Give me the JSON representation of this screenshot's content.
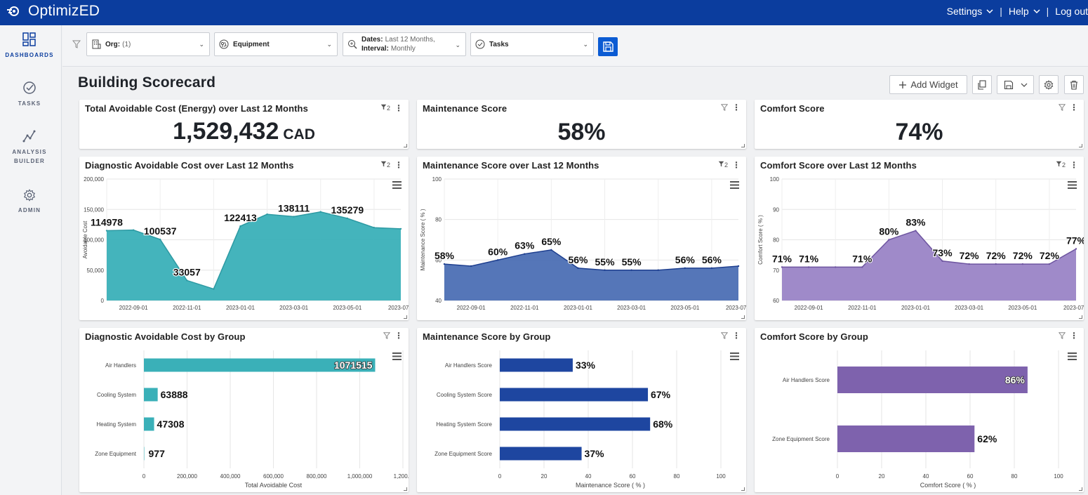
{
  "brand": {
    "name": "OptimizED"
  },
  "topnav": {
    "settings": "Settings",
    "help": "Help",
    "logout": "Log out",
    "separator": "|"
  },
  "sidebar": {
    "items": [
      {
        "label": "DASHBOARDS",
        "line2": ""
      },
      {
        "label": "TASKS",
        "line2": ""
      },
      {
        "label": "ANALYSIS",
        "line2": "BUILDER"
      },
      {
        "label": "ADMIN",
        "line2": ""
      }
    ]
  },
  "filters": {
    "org": {
      "label": "Org:",
      "value": "(1)"
    },
    "equipment": {
      "label": "Equipment"
    },
    "dates": {
      "label": "Dates:",
      "value": "Last 12 Months,",
      "interval_label": "Interval:",
      "interval_value": "Monthly"
    },
    "tasks": {
      "label": "Tasks"
    }
  },
  "page": {
    "title": "Building Scorecard"
  },
  "toolbar": {
    "add_widget": "Add Widget"
  },
  "colors": {
    "brand": "#0b3d9e",
    "teal": "#3ab0b8",
    "navy": "#1e46a0",
    "purple": "#7e62ad"
  },
  "widgets": {
    "kpi_cost": {
      "title": "Total Avoidable Cost (Energy) over Last 12 Months",
      "value": "1,529,432",
      "unit": "CAD",
      "filter_count": "2"
    },
    "kpi_maint": {
      "title": "Maintenance Score",
      "value": "58%"
    },
    "kpi_comfort": {
      "title": "Comfort Score",
      "value": "74%"
    },
    "line_cost": {
      "title": "Diagnostic Avoidable Cost over Last 12 Months",
      "filter_count": "2"
    },
    "line_maint": {
      "title": "Maintenance Score over Last 12 Months",
      "filter_count": "2"
    },
    "line_comfort": {
      "title": "Comfort Score over Last 12 Months",
      "filter_count": "2"
    },
    "bar_cost": {
      "title": "Diagnostic Avoidable Cost by Group"
    },
    "bar_maint": {
      "title": "Maintenance Score by Group"
    },
    "bar_comfort": {
      "title": "Comfort Score by Group"
    }
  },
  "chart_data": [
    {
      "id": "line_cost",
      "type": "area",
      "title": "Diagnostic Avoidable Cost over Last 12 Months",
      "ylabel": "Avoidable Cost",
      "ylim": [
        0,
        200000
      ],
      "yticks": [
        "0",
        "50,000",
        "100,000",
        "150,000",
        "200,000"
      ],
      "xticks": [
        "2022-09-01",
        "2022-11-01",
        "2023-01-01",
        "2023-03-01",
        "2023-05-01",
        "2023-07..."
      ],
      "x": [
        "2022-08",
        "2022-09",
        "2022-10",
        "2022-11",
        "2022-12",
        "2023-01",
        "2023-02",
        "2023-03",
        "2023-04",
        "2023-05",
        "2023-06",
        "2023-07"
      ],
      "values": [
        114978,
        116000,
        100537,
        33057,
        19000,
        122413,
        142000,
        138111,
        146000,
        135279,
        120000,
        118000
      ],
      "labels": [
        "114978",
        "",
        "100537",
        "33057",
        "",
        "122413",
        "",
        "138111",
        "",
        "135279",
        "",
        ""
      ],
      "color": "#3ab0b8",
      "stroke": "#2d9aa3"
    },
    {
      "id": "line_maint",
      "type": "area",
      "title": "Maintenance Score over Last 12 Months",
      "ylabel": "Maintenance Score ( % )",
      "ylim": [
        40,
        100
      ],
      "yticks": [
        "40",
        "60",
        "80",
        "100"
      ],
      "xticks": [
        "2022-09-01",
        "2022-11-01",
        "2023-01-01",
        "2023-03-01",
        "2023-05-01",
        "2023-07..."
      ],
      "x": [
        "2022-08",
        "2022-09",
        "2022-10",
        "2022-11",
        "2022-12",
        "2023-01",
        "2023-02",
        "2023-03",
        "2023-04",
        "2023-05",
        "2023-06",
        "2023-07"
      ],
      "values": [
        58,
        57,
        60,
        63,
        65,
        56,
        55,
        55,
        55,
        56,
        56,
        57
      ],
      "labels": [
        "58%",
        "",
        "60%",
        "63%",
        "65%",
        "56%",
        "55%",
        "55%",
        "",
        "56%",
        "56%",
        ""
      ],
      "color": "#4c6fb4",
      "stroke": "#1e3f8f"
    },
    {
      "id": "line_comfort",
      "type": "area",
      "title": "Comfort Score over Last 12 Months",
      "ylabel": "Comfort Score ( % )",
      "ylim": [
        60,
        100
      ],
      "yticks": [
        "60",
        "70",
        "80",
        "90",
        "100"
      ],
      "xticks": [
        "2022-09-01",
        "2022-11-01",
        "2023-01-01",
        "2023-03-01",
        "2023-05-01",
        "2023-07..."
      ],
      "x": [
        "2022-08",
        "2022-09",
        "2022-10",
        "2022-11",
        "2022-12",
        "2023-01",
        "2023-02",
        "2023-03",
        "2023-04",
        "2023-05",
        "2023-06",
        "2023-07"
      ],
      "values": [
        71,
        71,
        71,
        71,
        80,
        83,
        73,
        72,
        72,
        72,
        72,
        77
      ],
      "labels": [
        "71%",
        "71%",
        "",
        "71%",
        "80%",
        "83%",
        "73%",
        "72%",
        "72%",
        "72%",
        "72%",
        "77%"
      ],
      "color": "#9a84c6",
      "stroke": "#6e55a0"
    },
    {
      "id": "bar_cost",
      "type": "bar",
      "orientation": "horizontal",
      "title": "Diagnostic Avoidable Cost by Group",
      "xlabel": "Total Avoidable Cost",
      "xlim": [
        0,
        1200000
      ],
      "xticks": [
        "0",
        "200,000",
        "400,000",
        "600,000",
        "800,000",
        "1,000,000",
        "1,200..."
      ],
      "categories": [
        "Air Handlers",
        "Cooling System",
        "Heating System",
        "Zone Equipment"
      ],
      "values": [
        1071515,
        63888,
        47308,
        977
      ],
      "labels": [
        "1071515",
        "63888",
        "47308",
        "977"
      ],
      "color": "#3ab0b8"
    },
    {
      "id": "bar_maint",
      "type": "bar",
      "orientation": "horizontal",
      "title": "Maintenance Score by Group",
      "xlabel": "Maintenance Score ( % )",
      "xlim": [
        0,
        100
      ],
      "xticks": [
        "0",
        "20",
        "40",
        "60",
        "80",
        "100"
      ],
      "categories": [
        "Air Handlers Score",
        "Cooling System Score",
        "Heating System Score",
        "Zone Equipment Score"
      ],
      "values": [
        33,
        67,
        68,
        37
      ],
      "labels": [
        "33%",
        "67%",
        "68%",
        "37%"
      ],
      "color": "#1e46a0"
    },
    {
      "id": "bar_comfort",
      "type": "bar",
      "orientation": "horizontal",
      "title": "Comfort Score by Group",
      "xlabel": "Comfort Score ( % )",
      "xlim": [
        0,
        100
      ],
      "xticks": [
        "0",
        "20",
        "40",
        "60",
        "80",
        "100"
      ],
      "categories": [
        "Air Handlers Score",
        "Zone Equipment Score"
      ],
      "values": [
        86,
        62
      ],
      "labels": [
        "86%",
        "62%"
      ],
      "color": "#7e62ad"
    }
  ]
}
